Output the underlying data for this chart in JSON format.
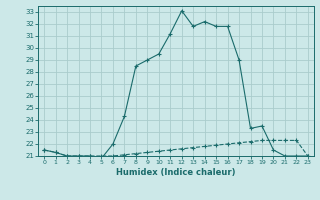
{
  "title": "",
  "xlabel": "Humidex (Indice chaleur)",
  "bg_color": "#cce8e8",
  "grid_color": "#aacccc",
  "line_color": "#1a6b6b",
  "xlim": [
    -0.5,
    23.5
  ],
  "ylim": [
    21,
    33.5
  ],
  "xticks": [
    0,
    1,
    2,
    3,
    4,
    5,
    6,
    7,
    8,
    9,
    10,
    11,
    12,
    13,
    14,
    15,
    16,
    17,
    18,
    19,
    20,
    21,
    22,
    23
  ],
  "yticks": [
    21,
    22,
    23,
    24,
    25,
    26,
    27,
    28,
    29,
    30,
    31,
    32,
    33
  ],
  "curve_flat_x": [
    0,
    1,
    2,
    3,
    4,
    5,
    6,
    7,
    8,
    9,
    10,
    11,
    12,
    13,
    14,
    15,
    16,
    17,
    18,
    19,
    20,
    21,
    22,
    23
  ],
  "curve_flat_y": [
    21.5,
    21.3,
    21.0,
    21.0,
    21.0,
    21.0,
    21.0,
    21.1,
    21.2,
    21.3,
    21.4,
    21.5,
    21.6,
    21.7,
    21.8,
    21.9,
    22.0,
    22.1,
    22.2,
    22.3,
    22.3,
    22.3,
    22.3,
    21.0
  ],
  "curve_peak_x": [
    0,
    1,
    2,
    3,
    4,
    5,
    6,
    7,
    8,
    9,
    10,
    11,
    12,
    13,
    14,
    15,
    16,
    17,
    18,
    19,
    20,
    21,
    22,
    23
  ],
  "curve_peak_y": [
    21.5,
    21.3,
    21.0,
    21.0,
    21.0,
    20.8,
    22.0,
    24.3,
    28.5,
    29.0,
    29.5,
    31.2,
    33.1,
    31.8,
    32.2,
    31.8,
    31.8,
    29.0,
    23.3,
    23.5,
    21.5,
    21.0,
    21.0,
    21.0
  ]
}
